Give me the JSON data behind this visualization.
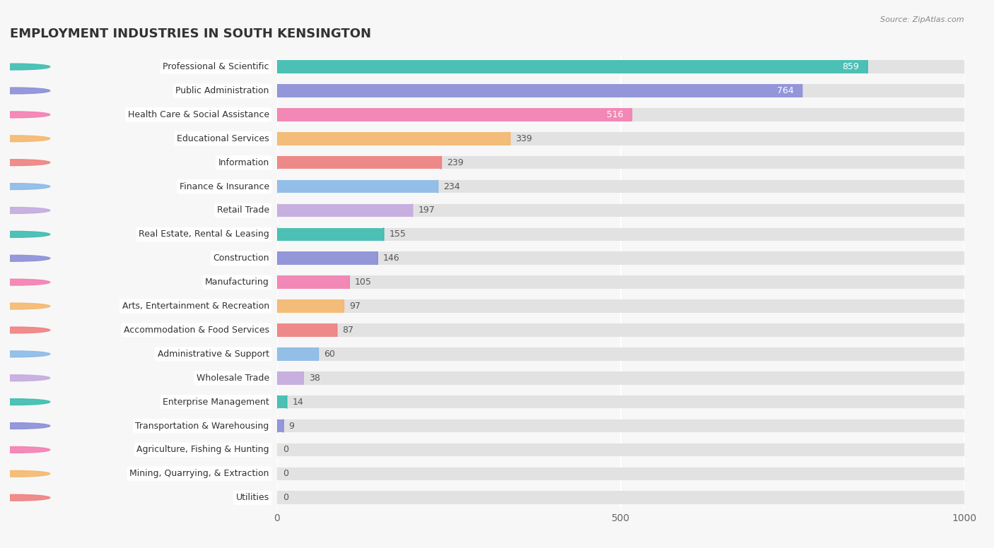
{
  "title": "EMPLOYMENT INDUSTRIES IN SOUTH KENSINGTON",
  "source": "Source: ZipAtlas.com",
  "categories": [
    "Professional & Scientific",
    "Public Administration",
    "Health Care & Social Assistance",
    "Educational Services",
    "Information",
    "Finance & Insurance",
    "Retail Trade",
    "Real Estate, Rental & Leasing",
    "Construction",
    "Manufacturing",
    "Arts, Entertainment & Recreation",
    "Accommodation & Food Services",
    "Administrative & Support",
    "Wholesale Trade",
    "Enterprise Management",
    "Transportation & Warehousing",
    "Agriculture, Fishing & Hunting",
    "Mining, Quarrying, & Extraction",
    "Utilities"
  ],
  "values": [
    859,
    764,
    516,
    339,
    239,
    234,
    197,
    155,
    146,
    105,
    97,
    87,
    60,
    38,
    14,
    9,
    0,
    0,
    0
  ],
  "colors": [
    "#3dbdb1",
    "#8b8fd8",
    "#f47eb0",
    "#f5b86e",
    "#f08080",
    "#8bbae8",
    "#c4aadf",
    "#3dbdb1",
    "#8b8fd8",
    "#f47eb0",
    "#f5b86e",
    "#f08080",
    "#8bbae8",
    "#c4aadf",
    "#3dbdb1",
    "#8b8fd8",
    "#f47eb0",
    "#f5b86e",
    "#f08080"
  ],
  "xlim_max": 1000,
  "xticks": [
    0,
    500,
    1000
  ],
  "background_color": "#f7f7f7",
  "bar_bg_color": "#e2e2e2",
  "title_fontsize": 13,
  "label_fontsize": 9,
  "value_fontsize": 9,
  "value_label_color_inside": "#ffffff",
  "value_label_color_outside": "#555555"
}
